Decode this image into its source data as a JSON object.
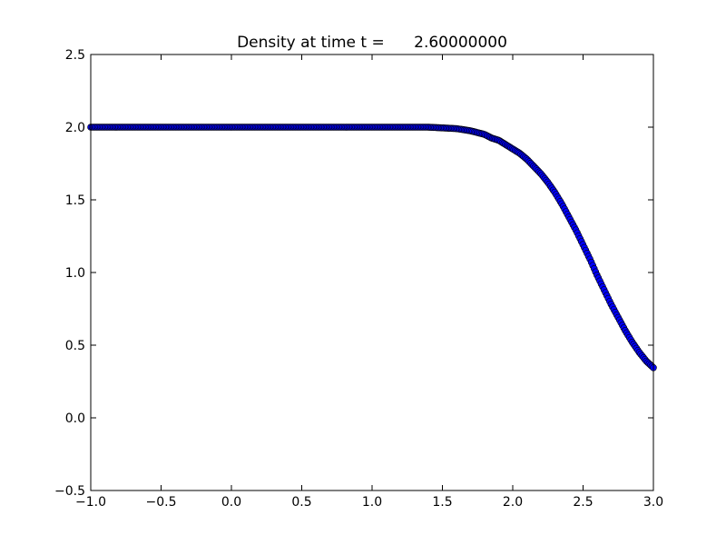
{
  "chart_data": {
    "type": "scatter",
    "title": "Density at time t =      2.60000000",
    "xlabel": "",
    "ylabel": "",
    "xlim": [
      -1.0,
      3.0
    ],
    "ylim": [
      -0.5,
      2.5
    ],
    "grid": false,
    "x_ticks": [
      -1.0,
      -0.5,
      0.0,
      0.5,
      1.0,
      1.5,
      2.0,
      2.5,
      3.0
    ],
    "x_tick_labels": [
      "−1.0",
      "−0.5",
      "0.0",
      "0.5",
      "1.0",
      "1.5",
      "2.0",
      "2.5",
      "3.0"
    ],
    "y_ticks": [
      -0.5,
      0.0,
      0.5,
      1.0,
      1.5,
      2.0,
      2.5
    ],
    "y_tick_labels": [
      "−0.5",
      "0.0",
      "0.5",
      "1.0",
      "1.5",
      "2.0",
      "2.5"
    ],
    "marker": "circle",
    "marker_color": "#0000ff",
    "marker_edge": "#000000",
    "series": [
      {
        "x": [
          -1.0,
          -0.9,
          -0.8,
          -0.7,
          -0.6,
          -0.5,
          -0.4,
          -0.3,
          -0.2,
          -0.1,
          0.0,
          0.1,
          0.2,
          0.3,
          0.4,
          0.5,
          0.6,
          0.7,
          0.8,
          0.9,
          1.0,
          1.1,
          1.2,
          1.3,
          1.4,
          1.5,
          1.6,
          1.7,
          1.8,
          1.85,
          1.9,
          1.95,
          2.0,
          2.05,
          2.1,
          2.15,
          2.2,
          2.25,
          2.3,
          2.35,
          2.4,
          2.45,
          2.5,
          2.55,
          2.6,
          2.65,
          2.7,
          2.75,
          2.8,
          2.85,
          2.9,
          2.95,
          3.0
        ],
        "y": [
          2.0,
          2.0,
          2.0,
          2.0,
          2.0,
          2.0,
          2.0,
          2.0,
          2.0,
          2.0,
          2.0,
          2.0,
          2.0,
          2.0,
          2.0,
          2.0,
          2.0,
          2.0,
          2.0,
          2.0,
          2.0,
          2.0,
          2.0,
          2.0,
          2.0,
          1.995,
          1.99,
          1.975,
          1.95,
          1.925,
          1.91,
          1.88,
          1.85,
          1.82,
          1.78,
          1.73,
          1.68,
          1.62,
          1.55,
          1.47,
          1.38,
          1.29,
          1.19,
          1.09,
          0.98,
          0.88,
          0.78,
          0.69,
          0.6,
          0.52,
          0.45,
          0.39,
          0.345
        ]
      }
    ]
  }
}
